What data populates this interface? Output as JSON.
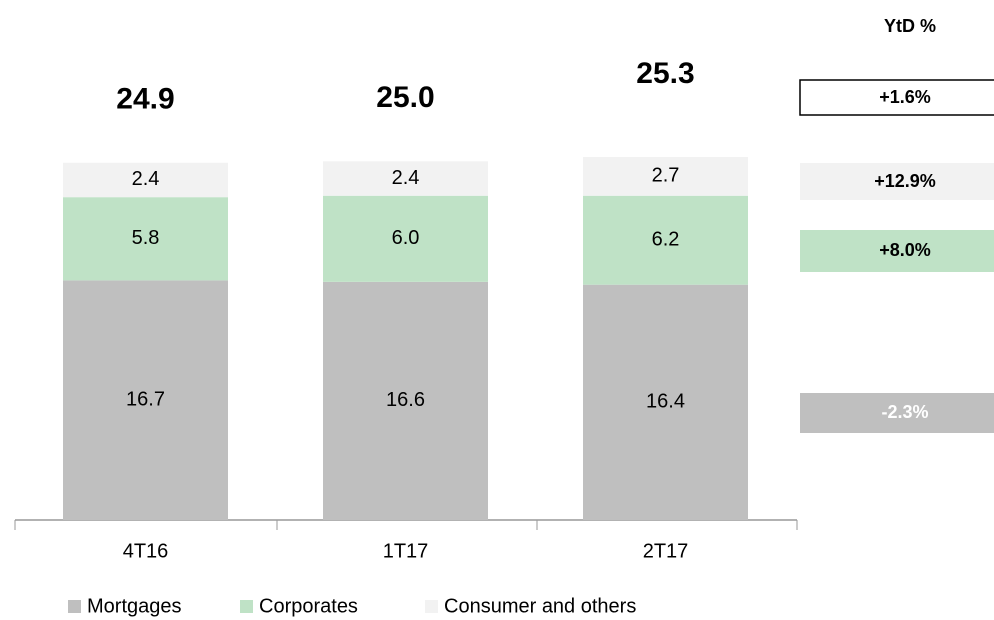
{
  "chart_data": {
    "type": "stacked_bar",
    "categories": [
      "4T16",
      "1T17",
      "2T17"
    ],
    "series": [
      {
        "name": "Mortgages",
        "color": "#bfbfbf",
        "values": [
          16.7,
          16.6,
          16.4
        ]
      },
      {
        "name": "Corporates",
        "color": "#bfe2c6",
        "values": [
          5.8,
          6.0,
          6.2
        ],
        "value_labels": [
          "5.8",
          "6.0",
          "6.2"
        ]
      },
      {
        "name": "Consumer and others",
        "color": "#f2f2f2",
        "values": [
          2.4,
          2.4,
          2.7
        ]
      }
    ],
    "totals": [
      24.9,
      25.0,
      25.3
    ],
    "total_labels": [
      "24.9",
      "25.0",
      "25.3"
    ],
    "ytd": {
      "title": "YtD %",
      "items": [
        "+1.6%",
        "+12.9%",
        "+8.0%",
        "-2.3%"
      ]
    }
  }
}
